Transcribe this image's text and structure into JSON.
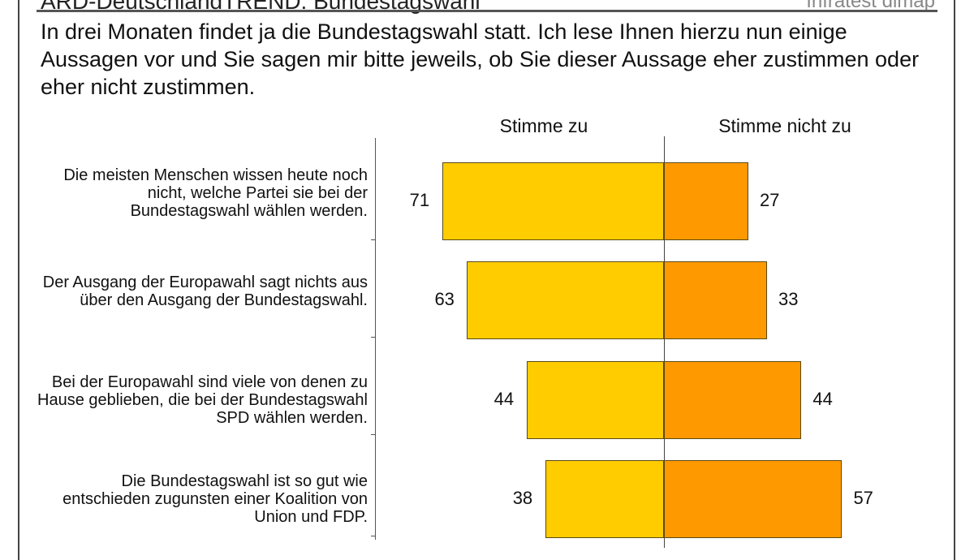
{
  "header": {
    "title": "ARD-DeutschlandTREND: Bundestagswahl",
    "source": "Infratest dimap"
  },
  "question": "In drei Monaten findet ja die Bundestagswahl statt. Ich lese Ihnen hierzu nun einige Aussagen vor und Sie sagen mir bitte jeweils, ob Sie dieser Aussage eher zustimmen oder eher nicht zustimmen.",
  "chart_data": {
    "type": "bar",
    "orientation": "horizontal-diverging",
    "categories": [
      "Die meisten Menschen wissen heute noch nicht, welche Partei sie bei der Bundestagswahl wählen werden.",
      "Der Ausgang der Europawahl sagt nichts aus über den Ausgang der Bundestagswahl.",
      "Bei der Europawahl sind viele von denen zu Hause geblieben, die bei der Bundestagswahl SPD wählen werden.",
      "Die Bundestagswahl ist so gut wie entschieden zugunsten einer Koalition von Union und FDP."
    ],
    "series": [
      {
        "name": "Stimme zu",
        "values": [
          71,
          63,
          44,
          38
        ],
        "color": "#FFCC00"
      },
      {
        "name": "Stimme nicht zu",
        "values": [
          27,
          33,
          44,
          57
        ],
        "color": "#FF9900"
      }
    ]
  }
}
